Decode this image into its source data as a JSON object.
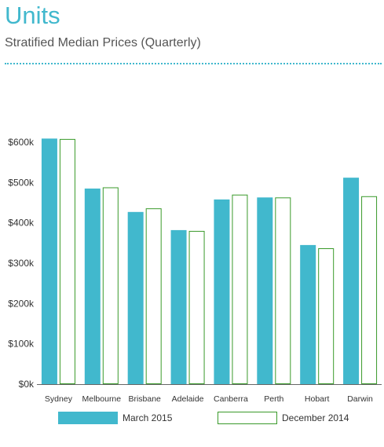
{
  "title": "Units",
  "subtitle": "Stratified Median Prices (Quarterly)",
  "colors": {
    "accent": "#41b8cd",
    "march_fill": "#41b8cd",
    "december_stroke": "#3a9a2a"
  },
  "chart_data": {
    "type": "bar",
    "categories": [
      "Sydney",
      "Melbourne",
      "Brisbane",
      "Adelaide",
      "Canberra",
      "Perth",
      "Hobart",
      "Darwin"
    ],
    "series": [
      {
        "name": "March 2015",
        "values": [
          609000,
          485000,
          427000,
          382000,
          458000,
          463000,
          345000,
          512000
        ]
      },
      {
        "name": "December 2014",
        "values": [
          608000,
          488000,
          436000,
          380000,
          470000,
          463000,
          337000,
          466000
        ]
      }
    ],
    "ylim": [
      0,
      600000
    ],
    "yticks": [
      0,
      100000,
      200000,
      300000,
      400000,
      500000,
      600000
    ],
    "ytick_labels": [
      "$0k",
      "$100k",
      "$200k",
      "$300k",
      "$400k",
      "$500k",
      "$600k"
    ],
    "legend_position": "bottom",
    "grid": false
  }
}
